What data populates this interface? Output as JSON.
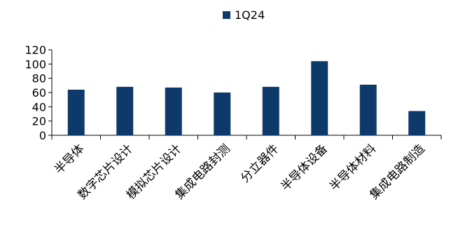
{
  "chart_data": {
    "type": "bar",
    "categories": [
      "半导体",
      "数字芯片设计",
      "模拟芯片设计",
      "集成电路封测",
      "分立器件",
      "半导体设备",
      "半导体材料",
      "集成电路制造"
    ],
    "series": [
      {
        "name": "1Q24",
        "values": [
          64,
          68,
          67,
          60,
          68,
          104,
          71,
          34
        ]
      }
    ],
    "ylim": [
      0,
      120
    ],
    "yticks": [
      0,
      20,
      40,
      60,
      80,
      100,
      120
    ],
    "legend_position": "top",
    "grid": false,
    "colors": {
      "bar": "#0e3a6b",
      "axis": "#000000"
    }
  }
}
